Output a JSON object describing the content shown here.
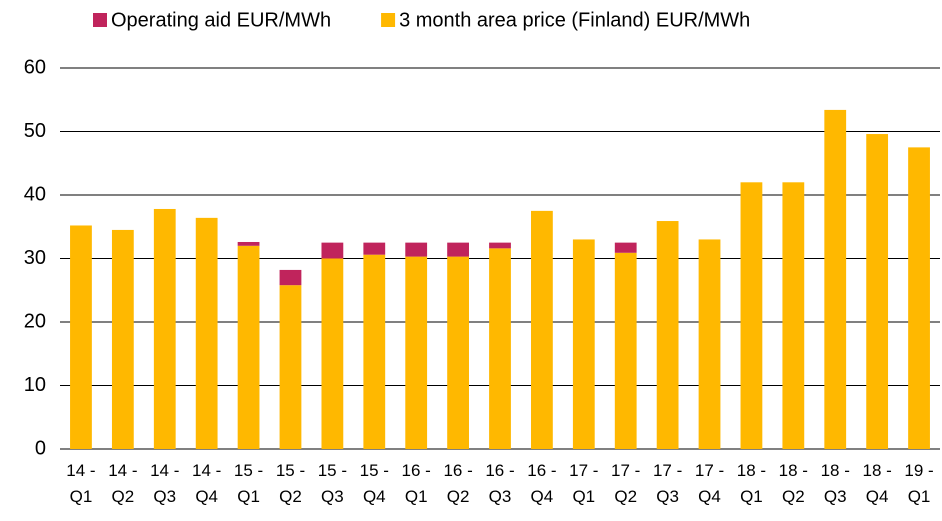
{
  "chart_data": {
    "type": "bar",
    "stacked": true,
    "categories": [
      "14 - Q1",
      "14 - Q2",
      "14 - Q3",
      "14 - Q4",
      "15 - Q1",
      "15 - Q2",
      "15 - Q3",
      "15 - Q4",
      "16 - Q1",
      "16 - Q2",
      "16 - Q3",
      "16 - Q4",
      "17 - Q1",
      "17 - Q2",
      "17 - Q3",
      "17 - Q4",
      "18 - Q1",
      "18 - Q2",
      "18 - Q3",
      "18 - Q4",
      "19 - Q1"
    ],
    "series": [
      {
        "name": "Operating aid EUR/MWh",
        "color": "#c0245c",
        "values": [
          0,
          0,
          0,
          0,
          0.6,
          2.4,
          2.5,
          1.9,
          2.2,
          2.2,
          0.9,
          0,
          0,
          1.6,
          0,
          0,
          0,
          0,
          0,
          0,
          0
        ]
      },
      {
        "name": "3 month area price (Finland) EUR/MWh",
        "color": "#ffb800",
        "values": [
          35.2,
          34.5,
          37.8,
          36.4,
          32.0,
          25.8,
          30.0,
          30.6,
          30.3,
          30.3,
          31.6,
          37.5,
          33.0,
          30.9,
          35.9,
          33.0,
          42.0,
          42.0,
          53.4,
          49.6,
          47.5
        ]
      }
    ],
    "ylim": [
      0,
      60
    ],
    "yticks": [
      0,
      10,
      20,
      30,
      40,
      50,
      60
    ],
    "grid": true,
    "legend": "top"
  }
}
